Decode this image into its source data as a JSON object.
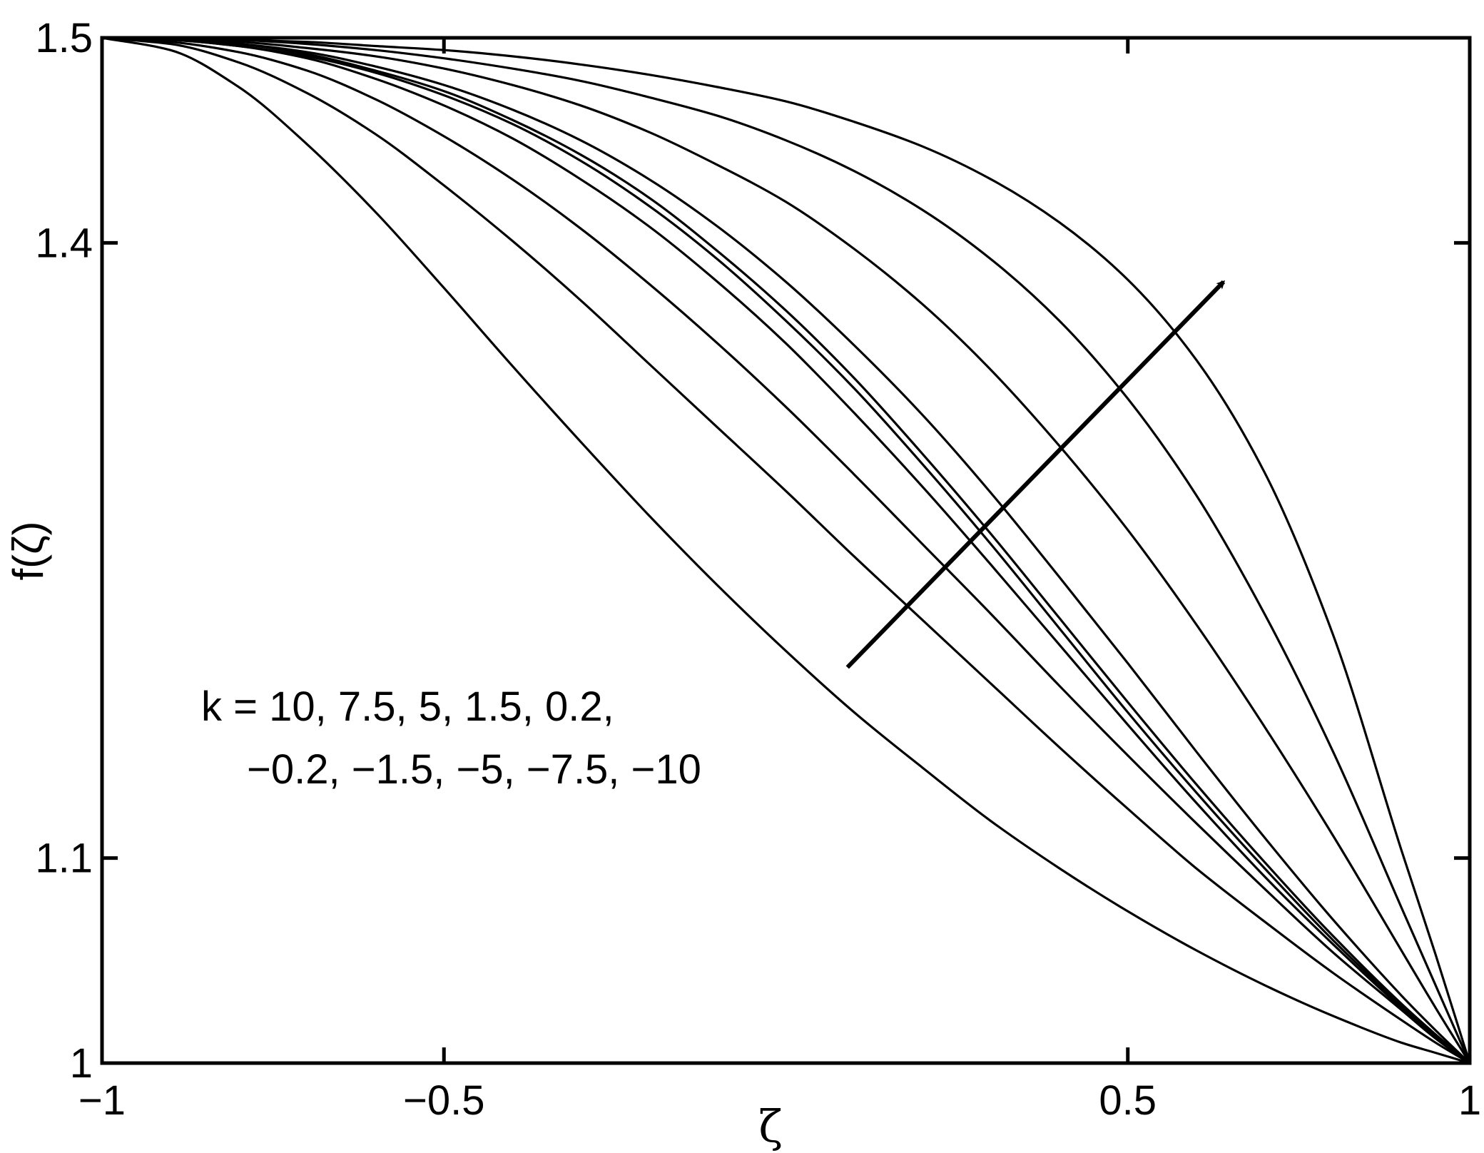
{
  "chart_data": {
    "type": "line",
    "title": "",
    "xlabel": "ζ",
    "ylabel": "f(ζ)",
    "xlim": [
      -1,
      1
    ],
    "ylim": [
      1,
      1.5
    ],
    "grid": false,
    "x_ticks": [
      {
        "value": -1,
        "label": "−1"
      },
      {
        "value": -0.5,
        "label": "−0.5"
      },
      {
        "value": 0.5,
        "label": "0.5"
      },
      {
        "value": 1,
        "label": "1"
      }
    ],
    "y_ticks": [
      {
        "value": 1,
        "label": "1"
      },
      {
        "value": 1.1,
        "label": "1.1"
      },
      {
        "value": 1.4,
        "label": "1.4"
      },
      {
        "value": 1.5,
        "label": "1.5"
      }
    ],
    "x": [
      -1,
      -0.9,
      -0.8,
      -0.7,
      -0.6,
      -0.5,
      -0.4,
      -0.3,
      -0.2,
      -0.1,
      0,
      0.1,
      0.2,
      0.3,
      0.4,
      0.5,
      0.6,
      0.7,
      0.8,
      0.9,
      0.95,
      1
    ],
    "series": [
      {
        "values": [
          1.5,
          1.494,
          1.476,
          1.448,
          1.415,
          1.378,
          1.34,
          1.303,
          1.267,
          1.233,
          1.201,
          1.171,
          1.144,
          1.118,
          1.095,
          1.074,
          1.055,
          1.038,
          1.023,
          1.01,
          1.005,
          1.0
        ]
      },
      {
        "values": [
          1.5,
          1.497,
          1.488,
          1.473,
          1.453,
          1.428,
          1.401,
          1.372,
          1.341,
          1.31,
          1.279,
          1.247,
          1.216,
          1.185,
          1.154,
          1.124,
          1.095,
          1.069,
          1.044,
          1.021,
          1.01,
          1.0
        ]
      },
      {
        "values": [
          1.5,
          1.498,
          1.493,
          1.484,
          1.47,
          1.452,
          1.431,
          1.407,
          1.38,
          1.351,
          1.32,
          1.287,
          1.253,
          1.219,
          1.184,
          1.15,
          1.117,
          1.085,
          1.054,
          1.026,
          1.012,
          1.0
        ]
      },
      {
        "values": [
          1.5,
          1.499,
          1.496,
          1.49,
          1.48,
          1.467,
          1.451,
          1.431,
          1.408,
          1.381,
          1.351,
          1.317,
          1.281,
          1.243,
          1.204,
          1.165,
          1.127,
          1.091,
          1.058,
          1.027,
          1.013,
          1.0
        ]
      },
      {
        "values": [
          1.5,
          1.499,
          1.496,
          1.491,
          1.483,
          1.472,
          1.458,
          1.44,
          1.418,
          1.392,
          1.362,
          1.329,
          1.292,
          1.253,
          1.212,
          1.171,
          1.132,
          1.095,
          1.06,
          1.028,
          1.013,
          1.0
        ]
      },
      {
        "values": [
          1.5,
          1.499,
          1.497,
          1.492,
          1.484,
          1.474,
          1.46,
          1.443,
          1.422,
          1.396,
          1.367,
          1.334,
          1.297,
          1.258,
          1.217,
          1.176,
          1.136,
          1.098,
          1.062,
          1.029,
          1.014,
          1.0
        ]
      },
      {
        "values": [
          1.5,
          1.499,
          1.497,
          1.493,
          1.486,
          1.477,
          1.465,
          1.45,
          1.431,
          1.408,
          1.381,
          1.35,
          1.316,
          1.278,
          1.237,
          1.195,
          1.152,
          1.11,
          1.07,
          1.033,
          1.016,
          1.0
        ]
      },
      {
        "values": [
          1.5,
          1.499,
          1.498,
          1.495,
          1.491,
          1.485,
          1.477,
          1.467,
          1.454,
          1.438,
          1.42,
          1.397,
          1.37,
          1.338,
          1.301,
          1.26,
          1.214,
          1.164,
          1.111,
          1.055,
          1.027,
          1.0
        ]
      },
      {
        "values": [
          1.5,
          1.5,
          1.499,
          1.497,
          1.494,
          1.49,
          1.485,
          1.479,
          1.471,
          1.462,
          1.45,
          1.435,
          1.416,
          1.392,
          1.362,
          1.324,
          1.277,
          1.219,
          1.152,
          1.076,
          1.038,
          1.0
        ]
      },
      {
        "values": [
          1.5,
          1.5,
          1.499,
          1.498,
          1.496,
          1.494,
          1.491,
          1.487,
          1.482,
          1.476,
          1.469,
          1.459,
          1.447,
          1.431,
          1.41,
          1.382,
          1.343,
          1.288,
          1.209,
          1.104,
          1.053,
          1.0
        ]
      }
    ],
    "annotation": {
      "line1": "k = 10, 7.5, 5, 1.5, 0.2,",
      "line2": "−0.2, −1.5, −5, −7.5, −10",
      "arrow_from": [
        0.09,
        1.193
      ],
      "arrow_to": [
        0.64,
        1.381
      ]
    }
  }
}
